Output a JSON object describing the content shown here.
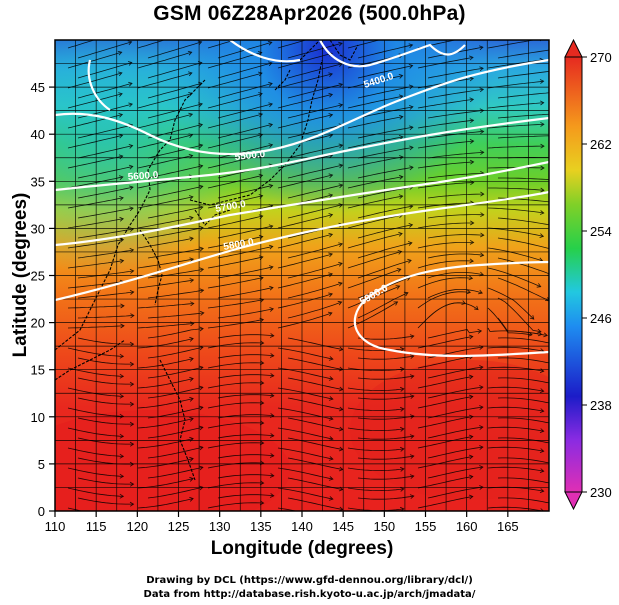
{
  "title": "GSM 06Z28Apr2026 (500.0hPa)",
  "x_axis": {
    "label": "Longitude (degrees)",
    "range": [
      110,
      170
    ],
    "ticks": [
      "110",
      "115",
      "120",
      "125",
      "130",
      "135",
      "140",
      "145",
      "150",
      "155",
      "160",
      "165"
    ]
  },
  "y_axis": {
    "label": "Latitude  (degrees)",
    "range": [
      0,
      50
    ],
    "ticks": [
      "0",
      "5",
      "10",
      "15",
      "20",
      "25",
      "30",
      "35",
      "40",
      "45"
    ]
  },
  "colorbar": {
    "ticks": [
      "230",
      "238",
      "246",
      "254",
      "262",
      "270"
    ],
    "range": [
      230,
      270
    ]
  },
  "contour_labels": [
    "5400.0",
    "5500.0",
    "5600.0",
    "5700.0",
    "5800.0",
    "5900.0"
  ],
  "credits": {
    "line1": "Drawing by DCL (https://www.gfd-dennou.org/library/dcl/)",
    "line2": "Data from http://database.rish.kyoto-u.ac.jp/arch/jmadata/"
  },
  "colors": {
    "warm": "#e8201e",
    "cool": "#1e90ff",
    "contour": "#ffffff",
    "streamline": "#000000"
  }
}
